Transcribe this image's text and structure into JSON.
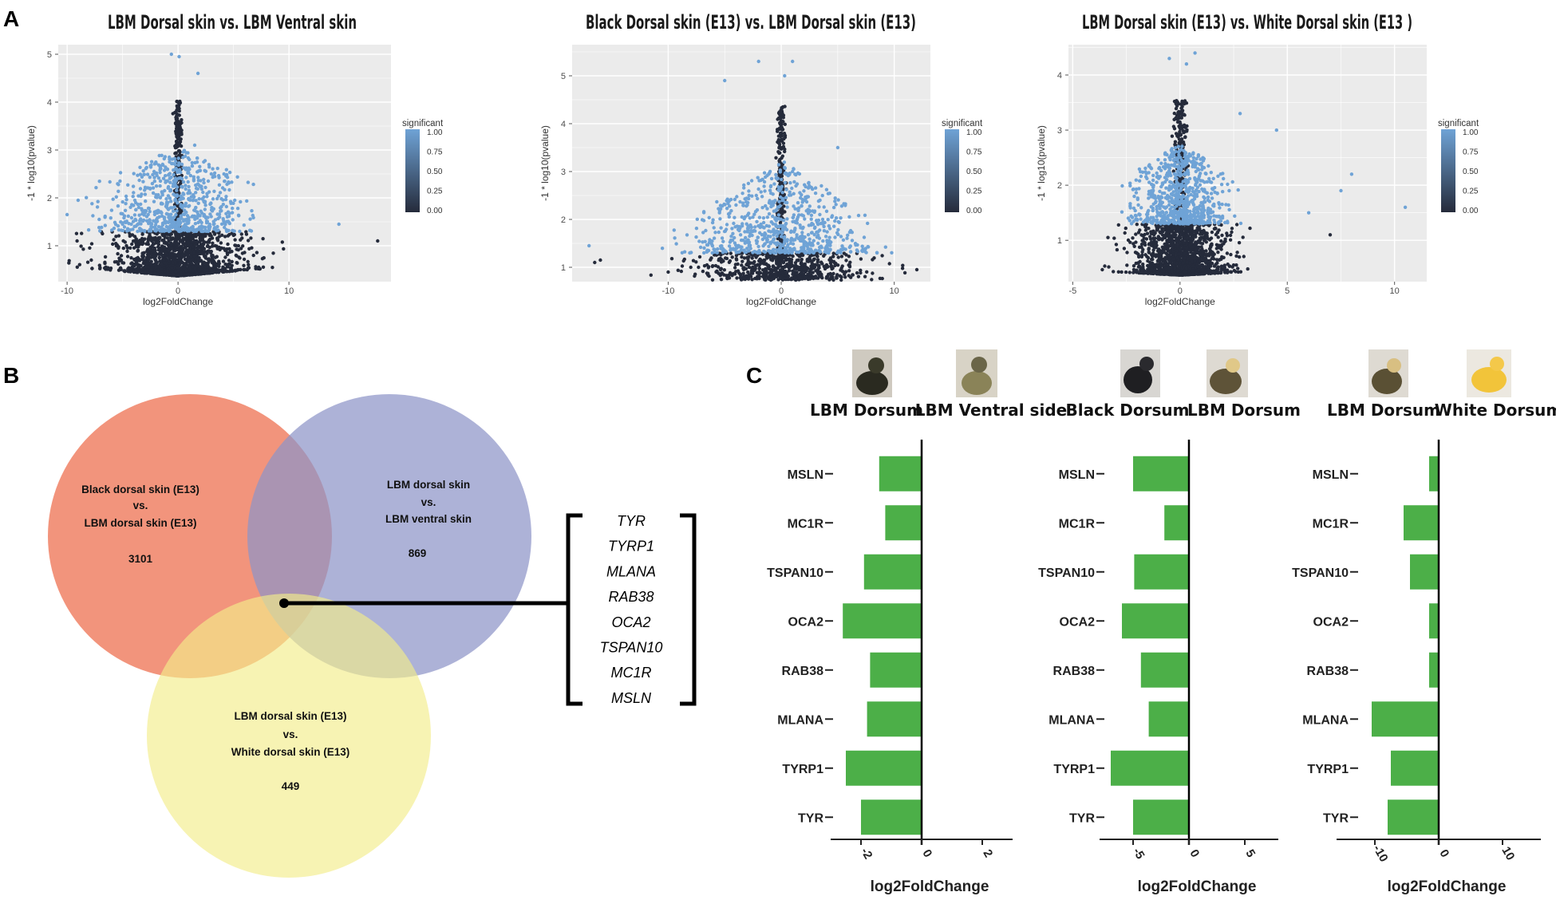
{
  "panel_labels": {
    "a": "A",
    "b": "B",
    "c": "C"
  },
  "colors": {
    "significant": "#6fa3d6",
    "nonsignificant": "#252b3b",
    "bar": "#4caf48",
    "venn_a": "#ef7d5f",
    "venn_b": "#8e94c8",
    "venn_c": "#f2ec8a"
  },
  "chart_data": [
    {
      "type": "scatter",
      "title": "LBM Dorsal skin vs. LBM  Ventral skin",
      "xlabel": "log2FoldChange",
      "ylabel": "-1 * log10(pvalue)",
      "xlim": [
        -10.8,
        19.2
      ],
      "ylim": [
        0.25,
        5.2
      ],
      "xticks": [
        -10,
        0,
        10
      ],
      "yticks": [
        1,
        2,
        3,
        4,
        5
      ],
      "significance_threshold": 1.3,
      "legend": {
        "title": "significant",
        "labels": [
          "1.00",
          "0.75",
          "0.50",
          "0.25",
          "0.00"
        ]
      },
      "spread": 4.5,
      "max_abs_fc": 17,
      "outliers": [
        [
          -10,
          1.65
        ],
        [
          -9.1,
          1.1
        ],
        [
          1.8,
          4.6
        ],
        [
          0.1,
          4.95
        ],
        [
          14.5,
          1.45
        ],
        [
          18,
          1.1
        ],
        [
          -5,
          1.45
        ],
        [
          3,
          2.5
        ],
        [
          1.5,
          3.1
        ],
        [
          -0.6,
          5.0
        ]
      ]
    },
    {
      "type": "scatter",
      "title": "Black Dorsal skin (E13)  vs.  LBM  Dorsal skin (E13)",
      "xlabel": "log2FoldChange",
      "ylabel": "-1 * log10(pvalue)",
      "xlim": [
        -18.5,
        13.2
      ],
      "ylim": [
        0.7,
        5.65
      ],
      "xticks": [
        -10,
        0,
        10
      ],
      "yticks": [
        1,
        2,
        3,
        4,
        5
      ],
      "significance_threshold": 1.3,
      "legend": {
        "title": "significant",
        "labels": [
          "1.00",
          "0.75",
          "0.50",
          "0.25",
          "0.00"
        ]
      },
      "spread": 5.5,
      "max_abs_fc": 12,
      "outliers": [
        [
          -16,
          1.15
        ],
        [
          -16.5,
          1.1
        ],
        [
          -10,
          0.9
        ],
        [
          -8,
          1.0
        ],
        [
          12,
          0.95
        ],
        [
          -2,
          5.3
        ],
        [
          1,
          5.3
        ],
        [
          0.3,
          5.0
        ],
        [
          5,
          3.5
        ],
        [
          -5,
          4.9
        ],
        [
          -17,
          1.45
        ]
      ]
    },
    {
      "type": "scatter",
      "title": "LBM Dorsal skin (E13)  vs.  White  Dorsal skin (E13 )",
      "xlabel": "log2FoldChange",
      "ylabel": "-1 * log10(pvalue)",
      "xlim": [
        -5.2,
        11.5
      ],
      "ylim": [
        0.25,
        4.55
      ],
      "xticks": [
        -5,
        0,
        5,
        10
      ],
      "yticks": [
        1,
        2,
        3,
        4
      ],
      "significance_threshold": 1.3,
      "legend": {
        "title": "significant",
        "labels": [
          "1.00",
          "0.75",
          "0.50",
          "0.25",
          "0.00"
        ]
      },
      "spread": 1.6,
      "max_abs_fc": 5.5,
      "outliers": [
        [
          7,
          1.1
        ],
        [
          7.5,
          1.9
        ],
        [
          8,
          2.2
        ],
        [
          10.5,
          1.6
        ],
        [
          4.5,
          3.0
        ],
        [
          -0.5,
          4.3
        ],
        [
          0.3,
          4.2
        ],
        [
          0.7,
          4.4
        ],
        [
          2.8,
          3.3
        ],
        [
          6,
          1.5
        ]
      ]
    },
    {
      "type": "bar",
      "orientation": "horizontal",
      "header": [
        "LBM Dorsum",
        "LBM Ventral side"
      ],
      "categories": [
        "MSLN",
        "MC1R",
        "TSPAN10",
        "OCA2",
        "RAB38",
        "MLANA",
        "TYRP1",
        "TYR"
      ],
      "values": [
        -1.4,
        -1.2,
        -1.9,
        -2.6,
        -1.7,
        -1.8,
        -2.5,
        -2.0
      ],
      "xlim": [
        -3.0,
        3.0
      ],
      "xticks": [
        -2,
        0,
        2
      ],
      "xtick_labels": [
        "-2",
        "0",
        "2"
      ],
      "xlabel": "log2FoldChange"
    },
    {
      "type": "bar",
      "orientation": "horizontal",
      "header": [
        "Black Dorsum",
        "LBM Dorsum"
      ],
      "categories": [
        "MSLN",
        "MC1R",
        "TSPAN10",
        "OCA2",
        "RAB38",
        "MLANA",
        "TYRP1",
        "TYR"
      ],
      "values": [
        -5.0,
        -2.2,
        -4.9,
        -6.0,
        -4.3,
        -3.6,
        -7.0,
        -5.0
      ],
      "xlim": [
        -8.0,
        8.0
      ],
      "xticks": [
        -5,
        0,
        5
      ],
      "xtick_labels": [
        "-5",
        "0",
        "5"
      ],
      "xlabel": "log2FoldChange"
    },
    {
      "type": "bar",
      "orientation": "horizontal",
      "header": [
        "LBM Dorsum",
        "White Dorsum"
      ],
      "categories": [
        "MSLN",
        "MC1R",
        "TSPAN10",
        "OCA2",
        "RAB38",
        "MLANA",
        "TYRP1",
        "TYR"
      ],
      "values": [
        -1.5,
        -5.5,
        -4.5,
        -1.5,
        -1.5,
        -10.5,
        -7.5,
        -8.0
      ],
      "xlim": [
        -16.0,
        16.0
      ],
      "xticks": [
        -10,
        0,
        10
      ],
      "xtick_labels": [
        "-10",
        "0",
        "10"
      ],
      "xlabel": "log2FoldChange"
    }
  ],
  "venn": {
    "set_a": {
      "line1": "Black dorsal skin (E13)",
      "line2": "vs.",
      "line3": "LBM dorsal skin  (E13)",
      "count": "3101"
    },
    "set_b": {
      "line1": "LBM dorsal skin",
      "line2": "vs.",
      "line3": "LBM  ventral skin",
      "count": "869"
    },
    "set_c": {
      "line1": "LBM dorsal skin (E13)",
      "line2": "vs.",
      "line3": "White dorsal skin (E13)",
      "count": "449"
    },
    "intersection_genes": [
      "TYR",
      "TYRP1",
      "MLANA",
      "RAB38",
      "OCA2",
      "TSPAN10",
      "MC1R",
      "MSLN"
    ]
  }
}
